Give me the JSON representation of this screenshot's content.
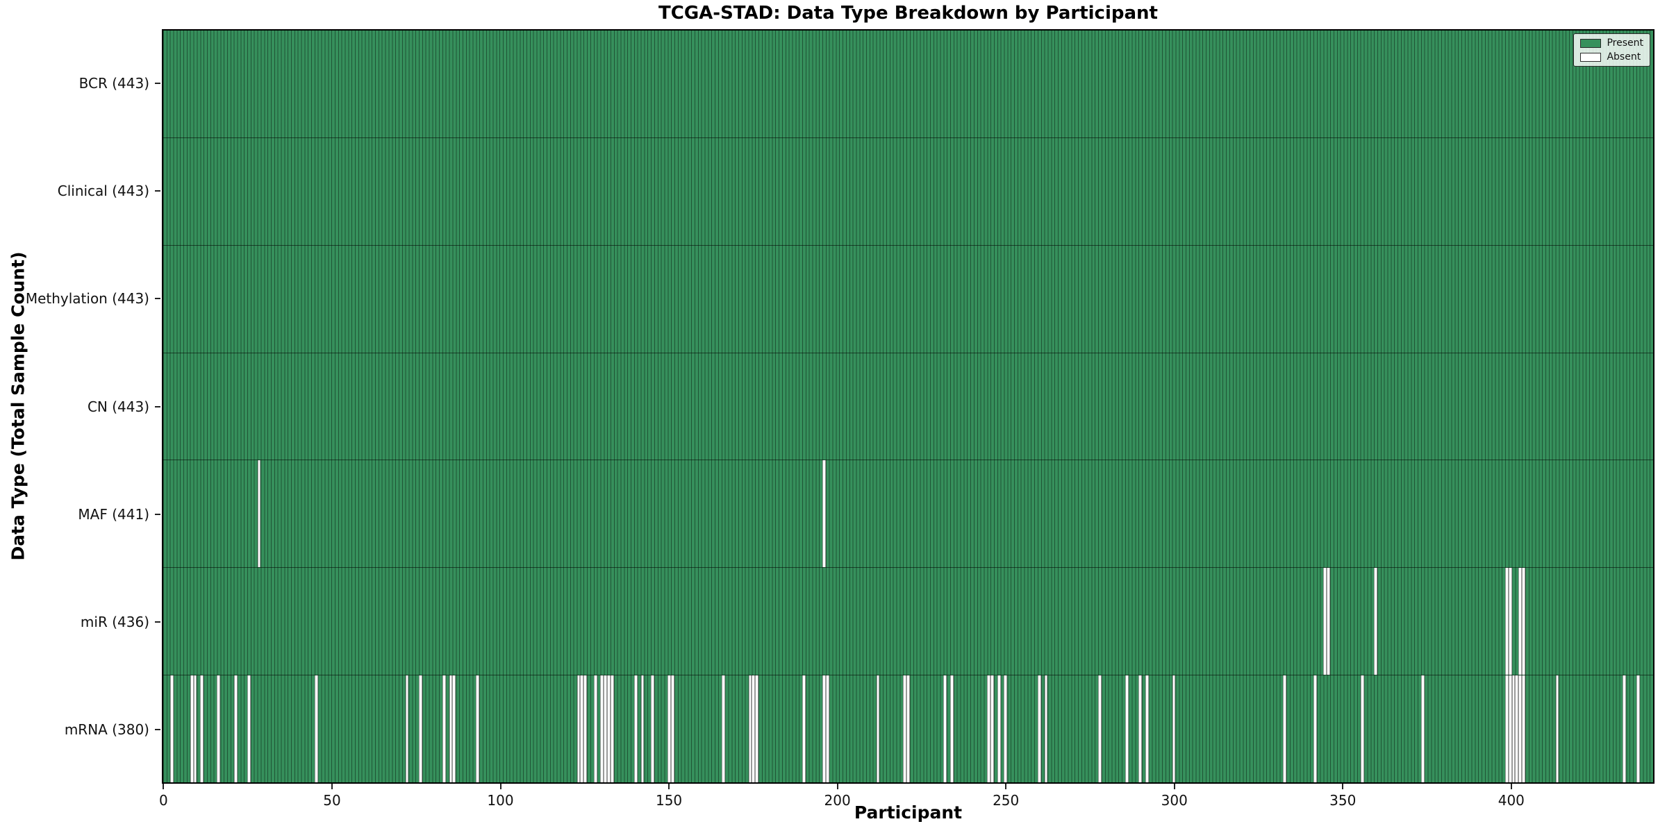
{
  "chart_data": {
    "type": "heatmap",
    "title": "TCGA-STAD: Data Type Breakdown by Participant",
    "xlabel": "Participant",
    "ylabel": "Data Type (Total Sample Count)",
    "n_participants": 443,
    "x_ticks": [
      0,
      50,
      100,
      150,
      200,
      250,
      300,
      350,
      400
    ],
    "xlim": [
      0,
      443
    ],
    "grid": false,
    "legend_position": "upper right",
    "legend": [
      {
        "label": "Present",
        "color": "#36905C"
      },
      {
        "label": "Absent",
        "color": "#FFFFFF"
      }
    ],
    "colors": {
      "present": "#36905C",
      "absent": "#FFFFFF",
      "cell_edge": "#1C3A28",
      "row_divider": "#223B2C",
      "plot_border": "#000000",
      "background": "#FFFFFF"
    },
    "rows": [
      {
        "name": "BCR",
        "label": "BCR (443)",
        "present_count": 443,
        "absent_participants": []
      },
      {
        "name": "Clinical",
        "label": "Clinical (443)",
        "present_count": 443,
        "absent_participants": []
      },
      {
        "name": "Methylation",
        "label": "Methylation (443)",
        "present_count": 443,
        "absent_participants": []
      },
      {
        "name": "CN",
        "label": "CN (443)",
        "present_count": 443,
        "absent_participants": []
      },
      {
        "name": "MAF",
        "label": "MAF (441)",
        "present_count": 441,
        "absent_participants": [
          28,
          196
        ]
      },
      {
        "name": "miR",
        "label": "miR (436)",
        "present_count": 436,
        "absent_participants": [
          345,
          346,
          360,
          399,
          400,
          403,
          404
        ]
      },
      {
        "name": "mRNA",
        "label": "mRNA (380)",
        "present_count": 380,
        "absent_participants": [
          2,
          8,
          9,
          11,
          16,
          21,
          25,
          45,
          72,
          76,
          83,
          85,
          86,
          93,
          123,
          124,
          125,
          128,
          130,
          131,
          132,
          133,
          140,
          142,
          145,
          150,
          151,
          166,
          174,
          175,
          176,
          190,
          196,
          197,
          212,
          220,
          221,
          232,
          234,
          245,
          246,
          248,
          250,
          260,
          262,
          278,
          286,
          290,
          292,
          300,
          333,
          342,
          356,
          374,
          399,
          400,
          401,
          402,
          403,
          404,
          414,
          434,
          438
        ]
      }
    ]
  }
}
